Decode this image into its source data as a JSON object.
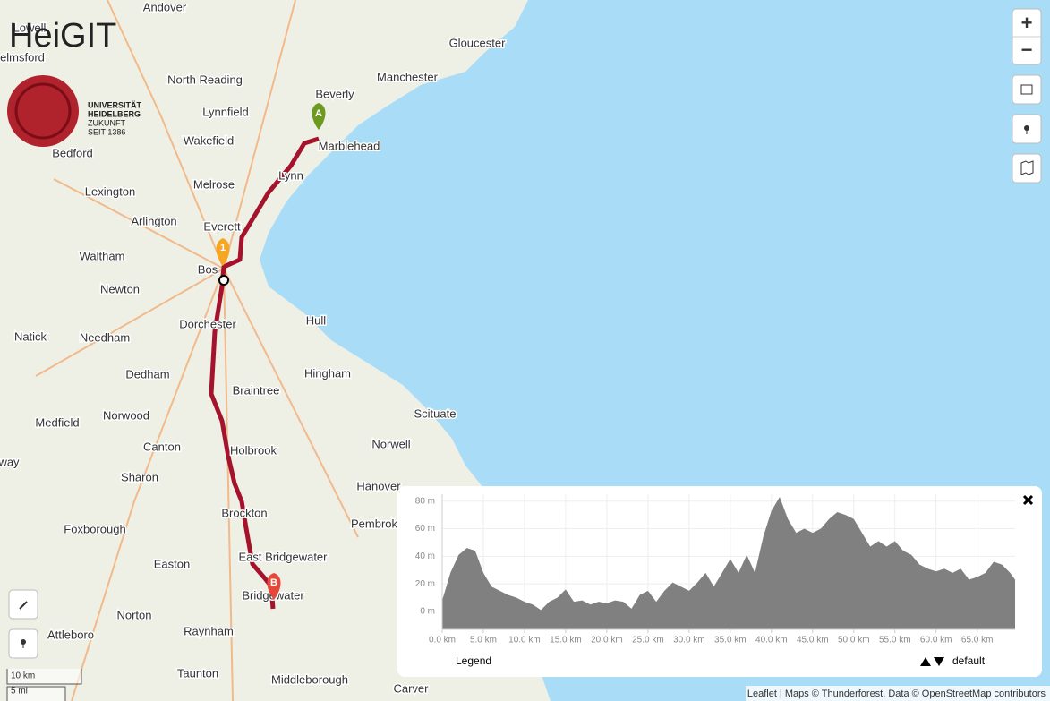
{
  "map": {
    "places": [
      "Andover",
      "Lowell",
      "elmsford",
      "Gloucester",
      "Manchester",
      "Beverly",
      "North Reading",
      "Lynnfield",
      "Marblehead",
      "Wakefield",
      "Bedford",
      "Lynn",
      "Melrose",
      "Lexington",
      "Arlington",
      "Everett",
      "Waltham",
      "Bos",
      "Newton",
      "Dorchester",
      "Hull",
      "Natick",
      "Needham",
      "Dedham",
      "Hingham",
      "Braintree",
      "Norwood",
      "Medfield",
      "Scituate",
      "Canton",
      "Holbrook",
      "Norwell",
      "Sharon",
      "Hanover",
      "Brockton",
      "Foxborough",
      "Pembrok",
      "Easton",
      "East Bridgewater",
      "Bridgewater",
      "Norton",
      "Raynham",
      "Attleboro",
      "Taunton",
      "Middleborough",
      "Carver",
      "way"
    ],
    "markers": [
      "A",
      "1",
      "B"
    ],
    "zoom_in": "+",
    "zoom_out": "−",
    "scale": [
      "10 km",
      "5 mi"
    ],
    "attribution": "Leaflet | Maps © Thunderforest, Data © OpenStreetMap contributors",
    "logo": {
      "name": "HeiGIT",
      "university": [
        "UNIVERSITÄT",
        "HEIDELBERG",
        "ZUKUNFT",
        "SEIT 1386"
      ]
    }
  },
  "chart_data": {
    "type": "area",
    "legend_title": "Legend",
    "x": [
      0,
      1,
      2,
      3,
      4,
      5,
      6,
      7,
      8,
      9,
      10,
      11,
      12,
      13,
      14,
      15,
      16,
      17,
      18,
      19,
      20,
      21,
      22,
      23,
      24,
      25,
      26,
      27,
      28,
      29,
      30,
      31,
      32,
      33,
      34,
      35,
      36,
      37,
      38,
      39,
      40,
      41,
      42,
      43,
      44,
      45,
      46,
      47,
      48,
      49,
      50,
      51,
      52,
      53,
      54,
      55,
      56,
      57,
      58,
      59,
      60,
      61,
      62,
      63,
      64,
      65,
      66,
      67,
      68,
      69,
      69.6
    ],
    "series": [
      {
        "name": "default",
        "color": "#808080",
        "values": [
          8,
          28,
          41,
          46,
          44,
          28,
          18,
          15,
          12,
          10,
          7,
          5,
          1,
          7,
          10,
          16,
          7,
          8,
          5,
          7,
          6,
          8,
          7,
          2,
          12,
          15,
          7,
          15,
          21,
          18,
          15,
          21,
          28,
          18,
          28,
          38,
          28,
          41,
          28,
          54,
          73,
          83,
          67,
          57,
          60,
          57,
          60,
          67,
          72,
          70,
          67,
          57,
          47,
          51,
          47,
          51,
          44,
          41,
          34,
          31,
          29,
          31,
          28,
          31,
          23,
          25,
          28,
          36,
          34,
          28,
          23
        ]
      }
    ],
    "xlim": [
      0,
      69.6
    ],
    "ylim": [
      -13,
      85
    ],
    "xticks": [
      {
        "value": 0,
        "label": "0.0 km"
      },
      {
        "value": 5,
        "label": "5.0 km"
      },
      {
        "value": 10,
        "label": "10.0 km"
      },
      {
        "value": 15,
        "label": "15.0 km"
      },
      {
        "value": 20,
        "label": "20.0 km"
      },
      {
        "value": 25,
        "label": "25.0 km"
      },
      {
        "value": 30,
        "label": "30.0 km"
      },
      {
        "value": 35,
        "label": "35.0 km"
      },
      {
        "value": 40,
        "label": "40.0 km"
      },
      {
        "value": 45,
        "label": "45.0 km"
      },
      {
        "value": 50,
        "label": "50.0 km"
      },
      {
        "value": 55,
        "label": "55.0 km"
      },
      {
        "value": 60,
        "label": "60.0 km"
      },
      {
        "value": 65,
        "label": "65.0 km"
      }
    ],
    "yticks": [
      {
        "value": 0,
        "label": "0 m"
      },
      {
        "value": 20,
        "label": "20 m"
      },
      {
        "value": 40,
        "label": "40 m"
      },
      {
        "value": 60,
        "label": "60 m"
      },
      {
        "value": 80,
        "label": "80 m"
      }
    ],
    "grid": true
  }
}
